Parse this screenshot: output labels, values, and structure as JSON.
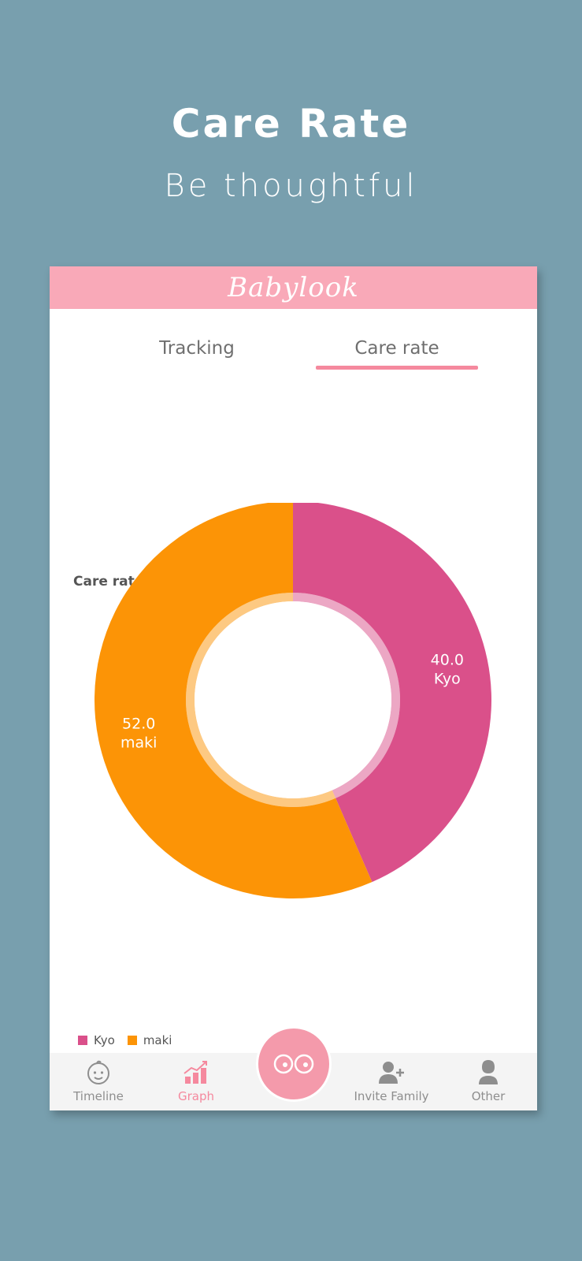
{
  "promo": {
    "title": "Care Rate",
    "subtitle": "Be thoughtful"
  },
  "app": {
    "logo_text": "Babylook",
    "brand_color": "#f9a9b8",
    "tabs": [
      {
        "label": "Tracking",
        "active": false
      },
      {
        "label": "Care rate",
        "active": true
      }
    ]
  },
  "chart_data": {
    "type": "pie",
    "title": "Care rate",
    "series": [
      {
        "name": "Kyo",
        "value": 40.0,
        "label": "40.0",
        "color": "#da508a"
      },
      {
        "name": "maki",
        "value": 52.0,
        "label": "52.0",
        "color": "#fc9406"
      }
    ],
    "donut": true,
    "legend_position": "bottom-left"
  },
  "legend": [
    {
      "label": "Kyo",
      "color": "#da508a"
    },
    {
      "label": "maki",
      "color": "#fc9406"
    }
  ],
  "bottom_nav": {
    "items": [
      {
        "label": "Timeline",
        "icon": "baby-face-icon",
        "active": false
      },
      {
        "label": "Graph",
        "icon": "bar-chart-icon",
        "active": true
      },
      {
        "label": "Invite Family",
        "icon": "add-user-icon",
        "active": false
      },
      {
        "label": "Other",
        "icon": "person-icon",
        "active": false
      }
    ],
    "center_button_icon": "eyes-icon"
  }
}
